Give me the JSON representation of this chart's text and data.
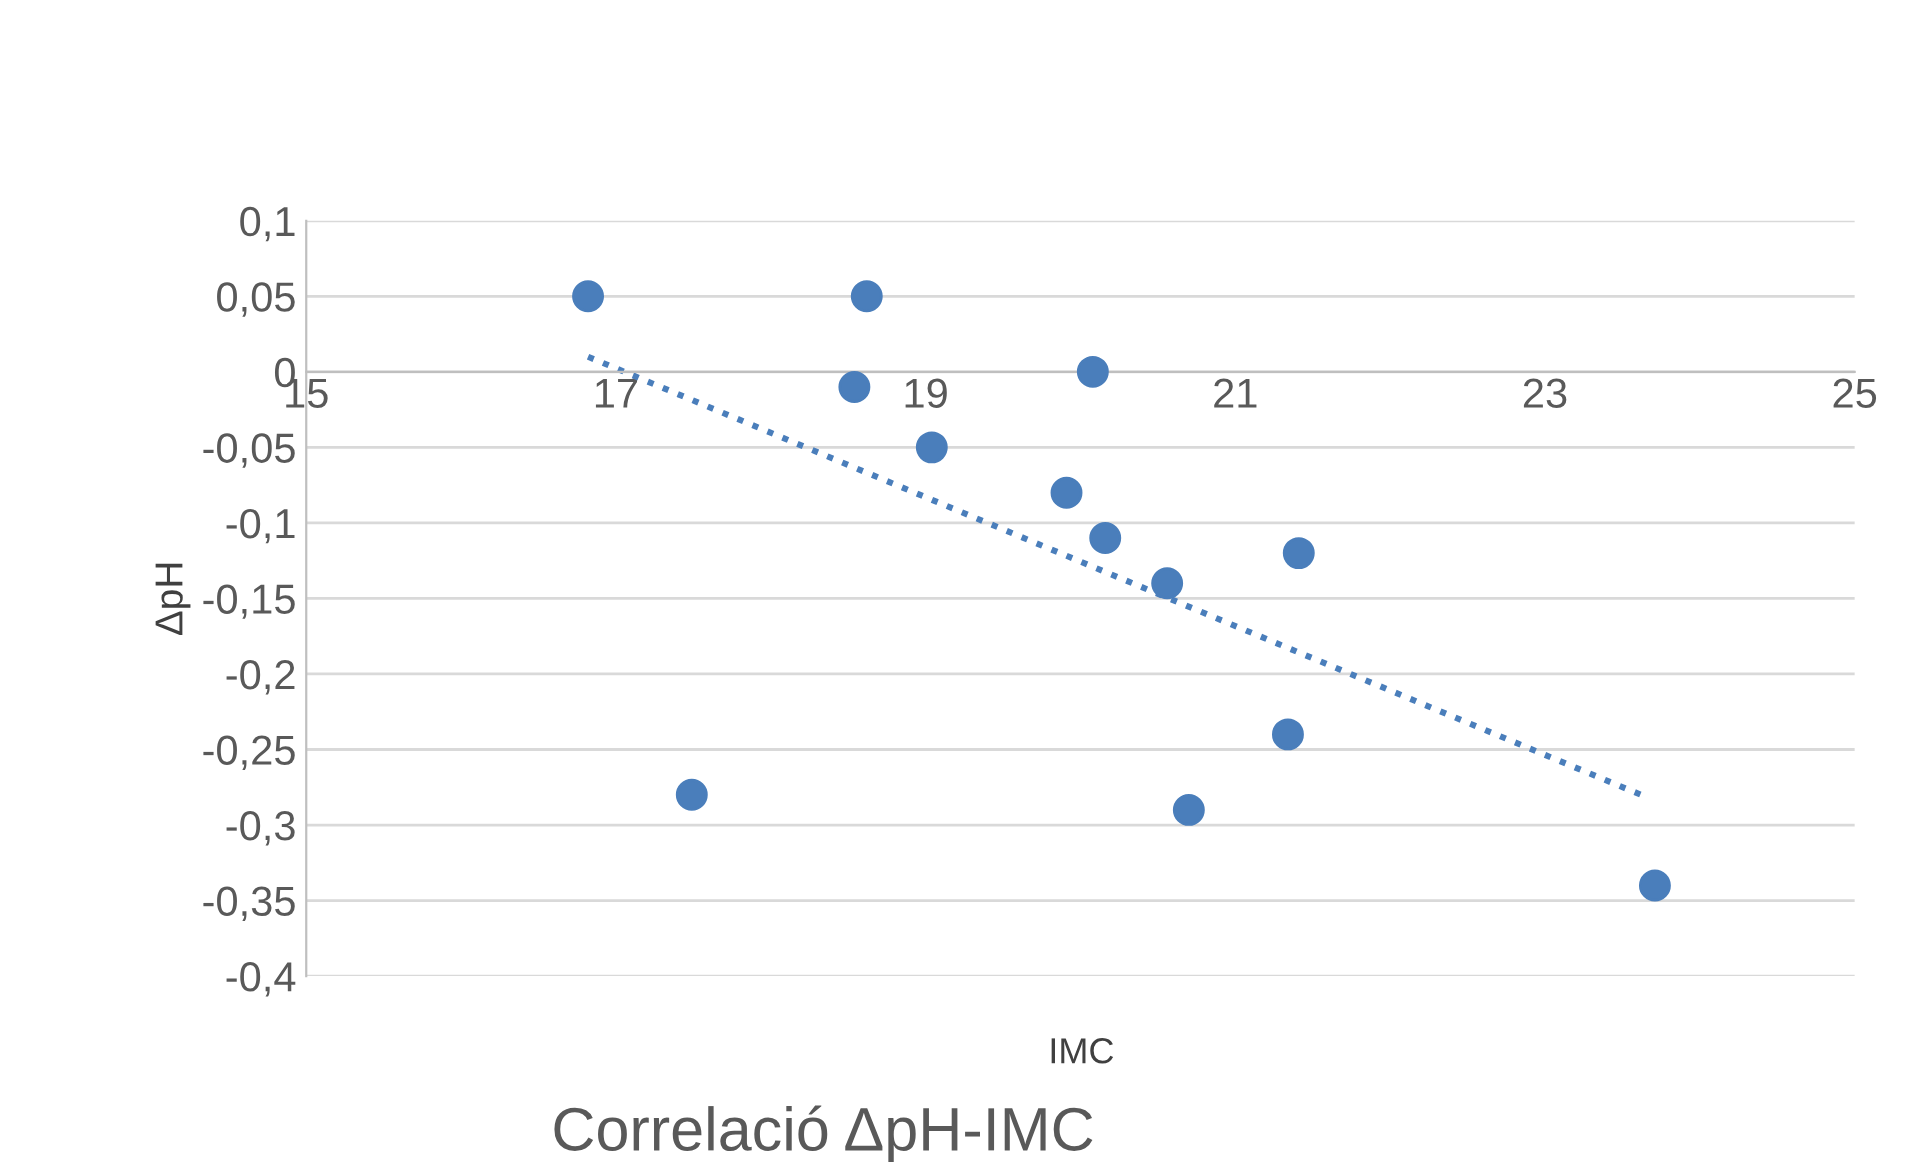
{
  "chart_data": {
    "type": "scatter",
    "title": "Correlació ΔpH-IMC",
    "xlabel": "IMC",
    "ylabel": "ΔpH",
    "series": [
      {
        "color": "#4a7ebb",
        "marker": "circle",
        "x": [
          16.82,
          18.62,
          18.54,
          19.04,
          20.08,
          19.91,
          20.16,
          20.56,
          21.41,
          21.34,
          20.7,
          17.49,
          23.71
        ],
        "values": [
          0.05,
          0.05,
          -0.01,
          -0.05,
          0,
          -0.08,
          -0.11,
          -0.14,
          -0.12,
          -0.24,
          -0.29,
          -0.28,
          -0.34
        ]
      },
      {
        "type": "line",
        "color": "#4a7ebb",
        "line_style": "dotted",
        "x": [
          16.82,
          23.62
        ],
        "values": [
          0.01,
          -0.28
        ]
      }
    ],
    "xlim": [
      15,
      25
    ],
    "xticks": [
      15,
      17,
      19,
      21,
      23,
      25
    ],
    "ylim": [
      -0.4,
      0.1
    ],
    "yticks": [
      {
        "value": 0.1,
        "label": "0,1"
      },
      {
        "value": 0.05,
        "label": "0,05"
      },
      {
        "value": 0,
        "label": "0"
      },
      {
        "value": -0.05,
        "label": "-0,05"
      },
      {
        "value": -0.1,
        "label": "-0,1"
      },
      {
        "value": -0.15,
        "label": "-0,15"
      },
      {
        "value": -0.2,
        "label": "-0,2"
      },
      {
        "value": -0.25,
        "label": "-0,25"
      },
      {
        "value": -0.3,
        "label": "-0,3"
      },
      {
        "value": -0.35,
        "label": "-0,35"
      },
      {
        "value": -0.4,
        "label": "-0,4"
      }
    ],
    "grid": "y",
    "legend": false
  }
}
